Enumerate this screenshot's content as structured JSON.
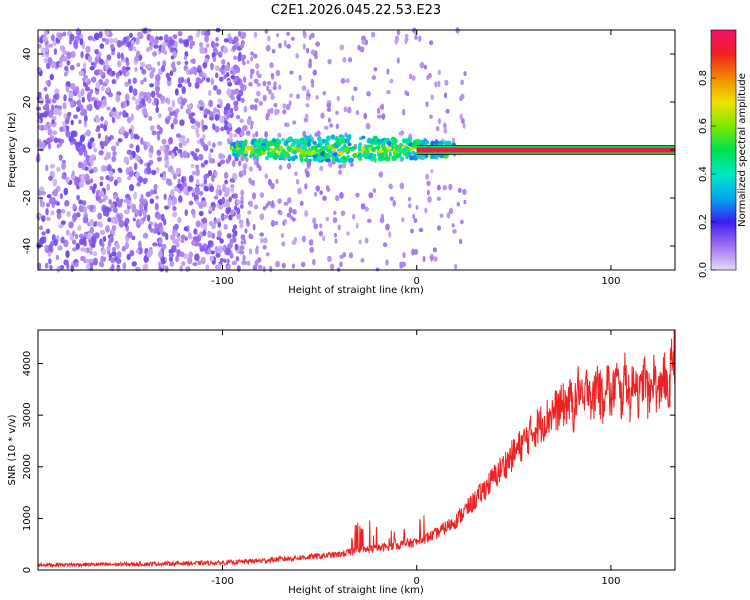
{
  "title": "C2E1.2026.045.22.53.E23",
  "chart_data": [
    {
      "type": "heatmap",
      "name": "spectrogram",
      "xlabel": "Height of straight line (km)",
      "ylabel": "Frequency (Hz)",
      "xlim": [
        -195,
        133
      ],
      "ylim": [
        -50,
        50
      ],
      "xticks": [
        -100,
        0,
        100
      ],
      "yticks": [
        -40,
        -20,
        0,
        20,
        40
      ],
      "colorbar": {
        "label": "Normalized spectral amplitude",
        "range": [
          0,
          1
        ],
        "ticks": [
          0.0,
          0.2,
          0.4,
          0.6,
          0.8
        ]
      },
      "regions": [
        {
          "name": "noise",
          "x": [
            -195,
            -90
          ],
          "freq": [
            -50,
            50
          ],
          "amplitude": 0.1
        },
        {
          "name": "sparse-noise",
          "x": [
            -90,
            25
          ],
          "freq": [
            -50,
            50
          ],
          "amplitude": 0.05
        },
        {
          "name": "signal-blob",
          "x": [
            -95,
            20
          ],
          "freq": [
            -5,
            6
          ],
          "amplitude": 0.4
        },
        {
          "name": "carrier-line",
          "x": [
            0,
            133
          ],
          "freq": [
            -1,
            1
          ],
          "amplitude": 0.95
        }
      ]
    },
    {
      "type": "line",
      "name": "snr",
      "xlabel": "Height of straight line (km)",
      "ylabel": "SNR (10 * v/v)",
      "xlim": [
        -195,
        133
      ],
      "ylim": [
        0,
        4650
      ],
      "xticks": [
        -100,
        0,
        100
      ],
      "yticks": [
        0,
        1000,
        2000,
        3000,
        4000
      ],
      "color": "#ee2222",
      "series": [
        {
          "name": "SNR",
          "x": [
            -195,
            -150,
            -100,
            -80,
            -60,
            -40,
            -30,
            -20,
            -10,
            0,
            10,
            20,
            30,
            40,
            50,
            60,
            70,
            80,
            90,
            100,
            110,
            120,
            130,
            133
          ],
          "values": [
            100,
            110,
            140,
            180,
            240,
            300,
            380,
            420,
            480,
            540,
            700,
            950,
            1350,
            1800,
            2250,
            2700,
            3050,
            3300,
            3450,
            3500,
            3550,
            3550,
            3600,
            4150
          ]
        }
      ]
    }
  ]
}
